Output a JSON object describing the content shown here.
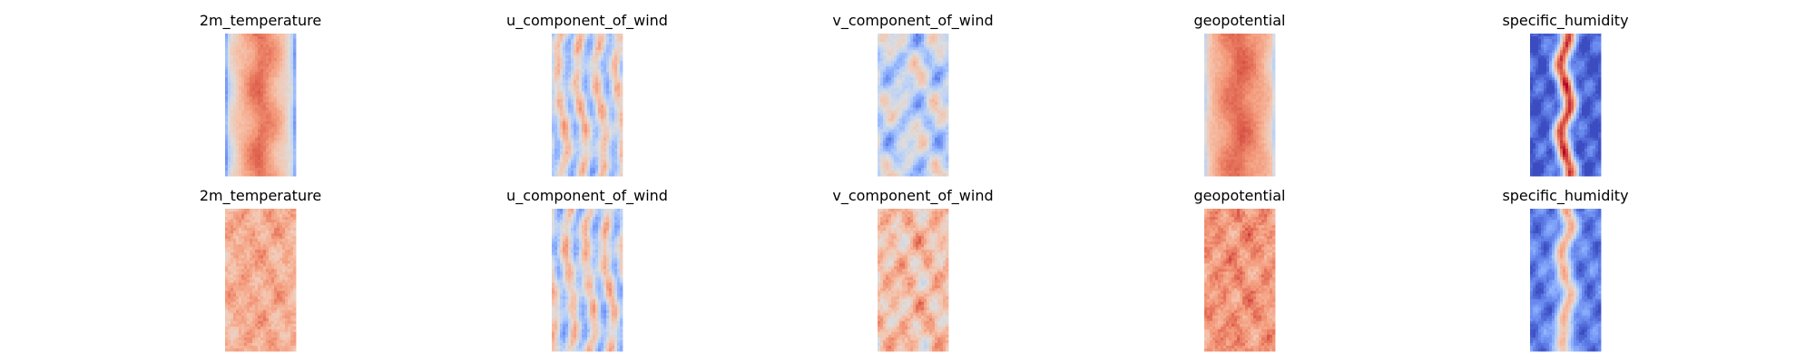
{
  "chart_data": {
    "type": "heatmap",
    "colormap": "coolwarm",
    "axes": "off",
    "layout": {
      "rows": 2,
      "columns": 5
    },
    "titles": [
      "2m_temperature",
      "u_component_of_wind",
      "v_component_of_wind",
      "geopotential",
      "specific_humidity"
    ],
    "panels": [
      {
        "row": 0,
        "col": 0,
        "title": "2m_temperature",
        "pattern": "warm-band",
        "mean": 0.72,
        "contrast": 0.28,
        "edge_level": 0.25
      },
      {
        "row": 0,
        "col": 1,
        "title": "u_component_of_wind",
        "pattern": "streaks",
        "mean": 0.45,
        "contrast": 0.3,
        "edge_level": 0.5
      },
      {
        "row": 0,
        "col": 2,
        "title": "v_component_of_wind",
        "pattern": "blobs",
        "mean": 0.42,
        "contrast": 0.32,
        "edge_level": 0.45
      },
      {
        "row": 0,
        "col": 3,
        "title": "geopotential",
        "pattern": "warm-band",
        "mean": 0.74,
        "contrast": 0.2,
        "edge_level": 0.45
      },
      {
        "row": 0,
        "col": 4,
        "title": "specific_humidity",
        "pattern": "humid-core",
        "mean": 0.3,
        "contrast": 0.45,
        "edge_level": 0.05
      },
      {
        "row": 1,
        "col": 0,
        "title": "2m_temperature",
        "pattern": "noisy-warm",
        "mean": 0.7,
        "contrast": 0.12,
        "edge_level": 0.6
      },
      {
        "row": 1,
        "col": 1,
        "title": "u_component_of_wind",
        "pattern": "streaks",
        "mean": 0.44,
        "contrast": 0.32,
        "edge_level": 0.45
      },
      {
        "row": 1,
        "col": 2,
        "title": "v_component_of_wind",
        "pattern": "noisy-warm",
        "mean": 0.64,
        "contrast": 0.22,
        "edge_level": 0.6
      },
      {
        "row": 1,
        "col": 3,
        "title": "geopotential",
        "pattern": "noisy-warm",
        "mean": 0.76,
        "contrast": 0.14,
        "edge_level": 0.7
      },
      {
        "row": 1,
        "col": 4,
        "title": "specific_humidity",
        "pattern": "humid-core",
        "mean": 0.24,
        "contrast": 0.28,
        "edge_level": 0.12
      }
    ]
  }
}
